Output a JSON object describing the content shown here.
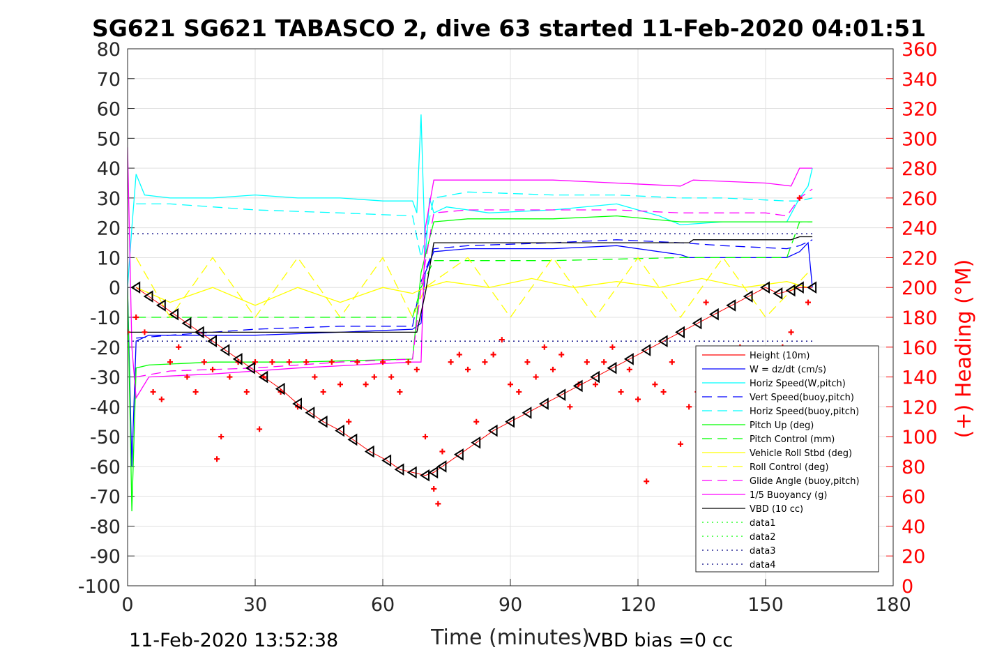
{
  "chart_data": {
    "type": "line",
    "title": "SG621 SG621 TABASCO 2, dive 63 started 11-Feb-2020 04:01:51",
    "xlabel": "Time (minutes)",
    "ylabel": "",
    "ylabel_right": "(+) Heading (°M)",
    "xlim": [
      0,
      180
    ],
    "ylim": [
      -100,
      80
    ],
    "ylim_right": [
      0,
      360
    ],
    "x_ticks": [
      "0",
      "30",
      "60",
      "90",
      "120",
      "150",
      "180"
    ],
    "y_ticks": [
      "80",
      "70",
      "60",
      "50",
      "40",
      "30",
      "20",
      "10",
      "0",
      "-10",
      "-20",
      "-30",
      "-40",
      "-50",
      "-60",
      "-70",
      "-80",
      "-90",
      "-100"
    ],
    "y_ticks_right": [
      "360",
      "340",
      "320",
      "300",
      "280",
      "260",
      "240",
      "220",
      "200",
      "180",
      "160",
      "140",
      "120",
      "100",
      "80",
      "60",
      "40",
      "20",
      "0"
    ],
    "grid": true,
    "legend_position": "lower-right inside",
    "footer_left": "11-Feb-2020 13:52:38",
    "footer_right": "VBD bias =0 cc",
    "series": [
      {
        "name": "Height (10m)",
        "color": "#ff0000",
        "style": "solid",
        "x": [],
        "y": []
      },
      {
        "name": "W = dz/dt (cm/s)",
        "color": "#0000ff",
        "style": "solid",
        "x": [
          0,
          1,
          2,
          5,
          15,
          30,
          50,
          67,
          69,
          70,
          72,
          80,
          100,
          115,
          130,
          132,
          150,
          155,
          158,
          160,
          161
        ],
        "y": [
          0,
          -60,
          -18,
          -16,
          -16,
          -16,
          -15,
          -14,
          -12,
          5,
          12,
          13,
          13,
          14,
          11,
          10,
          10,
          10,
          12,
          15,
          0
        ]
      },
      {
        "name": "Horiz Speed(W,pitch)",
        "color": "#00ffff",
        "style": "solid",
        "x": [
          0,
          1,
          2,
          4,
          10,
          20,
          30,
          40,
          50,
          60,
          67,
          68,
          69,
          70,
          71,
          72,
          75,
          85,
          100,
          115,
          125,
          130,
          140,
          150,
          155,
          158,
          160,
          161
        ],
        "y": [
          0,
          20,
          38,
          31,
          30,
          30,
          31,
          30,
          30,
          29,
          29,
          25,
          58,
          10,
          30,
          25,
          27,
          25,
          26,
          28,
          24,
          21,
          22,
          22,
          22,
          30,
          34,
          40
        ]
      },
      {
        "name": "Vert Speed(buoy,pitch)",
        "color": "#0000ff",
        "style": "dashed",
        "x": [
          2,
          10,
          30,
          50,
          67,
          69,
          72,
          80,
          100,
          115,
          130,
          140,
          155,
          158,
          161
        ],
        "y": [
          -17,
          -16,
          -14,
          -13,
          -13,
          2,
          13,
          14,
          15,
          16,
          15,
          14,
          13,
          14,
          16
        ]
      },
      {
        "name": "Horiz Speed(buoy,pitch)",
        "color": "#00ffff",
        "style": "dashed",
        "x": [
          2,
          10,
          30,
          50,
          67,
          69,
          72,
          80,
          100,
          115,
          130,
          140,
          155,
          158,
          161
        ],
        "y": [
          28,
          28,
          26,
          25,
          24,
          10,
          30,
          32,
          31,
          31,
          30,
          30,
          29,
          29,
          30
        ]
      },
      {
        "name": "Pitch Up (deg)",
        "color": "#00ff00",
        "style": "solid",
        "x": [
          0,
          1,
          2,
          5,
          20,
          40,
          67,
          69,
          72,
          80,
          100,
          115,
          130,
          150,
          155,
          158,
          161
        ],
        "y": [
          0,
          -75,
          -27,
          -26,
          -25,
          -25,
          -24,
          5,
          22,
          23,
          23,
          24,
          22,
          22,
          22,
          22,
          22
        ]
      },
      {
        "name": "Pitch Control (mm)",
        "color": "#00ff00",
        "style": "dashed",
        "x": [
          2,
          30,
          67,
          69,
          72,
          100,
          130,
          155,
          158,
          161
        ],
        "y": [
          -10,
          -10,
          -10,
          0,
          9,
          9,
          10,
          10,
          22,
          22
        ]
      },
      {
        "name": "Vehicle Roll Stbd (deg)",
        "color": "#ffff00",
        "style": "solid",
        "x": [
          2,
          10,
          20,
          30,
          40,
          50,
          60,
          67,
          70,
          75,
          85,
          95,
          105,
          115,
          125,
          135,
          145,
          155,
          160
        ],
        "y": [
          0,
          -5,
          0,
          -6,
          0,
          -5,
          0,
          -2,
          0,
          2,
          0,
          3,
          0,
          2,
          0,
          3,
          0,
          2,
          0
        ]
      },
      {
        "name": "Roll Control (deg)",
        "color": "#ffff00",
        "style": "dashed",
        "x": [
          2,
          10,
          20,
          30,
          40,
          50,
          60,
          67,
          70,
          80,
          90,
          100,
          110,
          120,
          130,
          140,
          150,
          160
        ],
        "y": [
          10,
          -10,
          10,
          -10,
          10,
          -10,
          10,
          -10,
          0,
          10,
          -10,
          10,
          -10,
          10,
          -10,
          10,
          -10,
          5
        ]
      },
      {
        "name": "Glide Angle (buoy,pitch)",
        "color": "#ff00ff",
        "style": "dashed",
        "x": [
          2,
          10,
          30,
          50,
          67,
          69,
          72,
          80,
          100,
          115,
          130,
          150,
          155,
          158,
          161
        ],
        "y": [
          -30,
          -28,
          -27,
          -25,
          -24,
          0,
          25,
          26,
          26,
          26,
          25,
          25,
          24,
          30,
          33
        ]
      },
      {
        "name": "1/5 Buoyancy (g)",
        "color": "#ff00ff",
        "style": "solid",
        "x": [
          0,
          1,
          2,
          5,
          20,
          40,
          67,
          69,
          70,
          72,
          80,
          100,
          115,
          130,
          133,
          150,
          156,
          158,
          161
        ],
        "y": [
          47,
          -20,
          -37,
          -30,
          -29,
          -27,
          -25,
          -25,
          20,
          36,
          36,
          36,
          35,
          34,
          36,
          35,
          34,
          40,
          40
        ]
      },
      {
        "name": "VBD (10 cc)",
        "color": "#000000",
        "style": "solid",
        "x": [
          0,
          2,
          67,
          68,
          70,
          72,
          80,
          100,
          132,
          133,
          150,
          156,
          158,
          161
        ],
        "y": [
          -15,
          -15,
          -15,
          -15,
          -2,
          15,
          15,
          15,
          15,
          16,
          16,
          16,
          17,
          17
        ]
      },
      {
        "name": "data1",
        "color": "#00ff00",
        "style": "dotted",
        "x": [],
        "y": []
      },
      {
        "name": "data2",
        "color": "#00ff00",
        "style": "dotted",
        "x": [],
        "y": []
      },
      {
        "name": "data3",
        "color": "#000080",
        "style": "dotted",
        "x": [
          0,
          161
        ],
        "y": [
          18,
          18
        ]
      },
      {
        "name": "data4",
        "color": "#000080",
        "style": "dotted",
        "x": [
          0,
          161
        ],
        "y": [
          -18,
          -18
        ]
      }
    ],
    "depth_markers": {
      "color": "#000000",
      "x": [
        2,
        5,
        8,
        11,
        14,
        17,
        20,
        23,
        26,
        29,
        32,
        36,
        40,
        43,
        46,
        50,
        53,
        57,
        61,
        64,
        67,
        70,
        72,
        74,
        78,
        82,
        86,
        90,
        94,
        98,
        102,
        106,
        110,
        114,
        118,
        122,
        126,
        130,
        134,
        138,
        142,
        146,
        150,
        153,
        156,
        158,
        161
      ],
      "y": [
        0,
        -3,
        -6,
        -9,
        -12,
        -15,
        -18,
        -21,
        -24,
        -27,
        -30,
        -34,
        -39,
        -42,
        -45,
        -48,
        -51,
        -55,
        -58,
        -61,
        -62,
        -63,
        -62,
        -60,
        -56,
        -52,
        -48,
        -45,
        -42,
        -39,
        -36,
        -33,
        -30,
        -27,
        -24,
        -21,
        -18,
        -15,
        -12,
        -9,
        -6,
        -3,
        0,
        -2,
        -1,
        0,
        0
      ]
    },
    "heading_markers": {
      "color": "#ff0000",
      "axis": "right",
      "x": [
        0,
        2,
        4,
        6,
        8,
        10,
        12,
        14,
        16,
        18,
        20,
        21,
        22,
        24,
        26,
        28,
        30,
        31,
        32,
        34,
        36,
        38,
        40,
        42,
        44,
        46,
        48,
        50,
        52,
        54,
        56,
        58,
        60,
        62,
        64,
        66,
        68,
        70,
        72,
        73,
        74,
        76,
        78,
        80,
        82,
        84,
        86,
        88,
        90,
        92,
        94,
        96,
        98,
        100,
        102,
        104,
        106,
        108,
        110,
        112,
        114,
        116,
        118,
        120,
        122,
        124,
        126,
        128,
        130,
        132,
        134,
        136,
        138,
        140,
        142,
        144,
        146,
        148,
        150,
        152,
        154,
        156,
        158,
        160
      ],
      "y": [
        170,
        180,
        170,
        130,
        125,
        150,
        160,
        140,
        130,
        150,
        145,
        85,
        100,
        140,
        150,
        130,
        150,
        105,
        140,
        150,
        130,
        150,
        120,
        150,
        140,
        130,
        150,
        135,
        110,
        150,
        135,
        140,
        150,
        140,
        130,
        150,
        145,
        100,
        65,
        55,
        90,
        150,
        155,
        145,
        110,
        150,
        155,
        165,
        135,
        130,
        150,
        140,
        160,
        145,
        155,
        120,
        135,
        150,
        135,
        150,
        160,
        130,
        145,
        125,
        70,
        135,
        130,
        150,
        95,
        120,
        130,
        190,
        140,
        150,
        150,
        160,
        120,
        130,
        145,
        155,
        160,
        170,
        260,
        190
      ]
    }
  }
}
